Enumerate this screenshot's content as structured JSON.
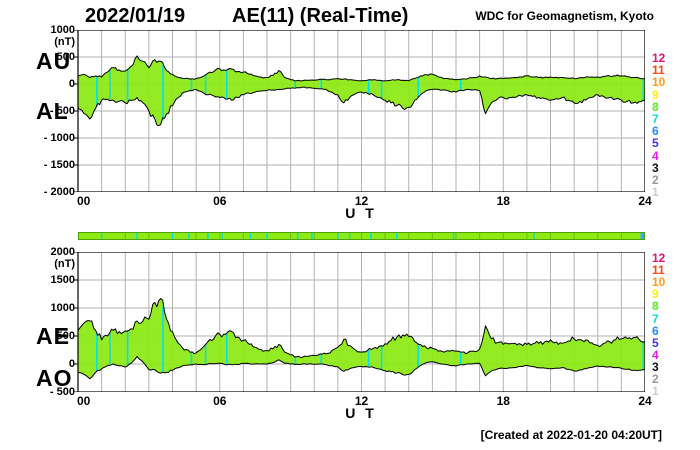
{
  "header": {
    "date": "2022/01/19",
    "title": "AE(11) (Real-Time)",
    "credit": "WDC for Geomagnetism, Kyoto"
  },
  "footer": {
    "created": "[Created at 2022-01-20 04:20UT]"
  },
  "axis": {
    "ut_label": "U T",
    "x_tick_labels": [
      "00",
      "06",
      "12",
      "18",
      "24"
    ],
    "unit": "(nT)"
  },
  "panel1": {
    "label_upper": "AU",
    "label_lower": "AL",
    "y_tick_labels": [
      "1000",
      "500",
      "0",
      "- 500",
      "- 1000",
      "- 1500",
      "- 2000"
    ]
  },
  "panel2": {
    "label_upper": "AE",
    "label_lower": "AO",
    "y_tick_labels": [
      "2000",
      "1500",
      "1000",
      "500",
      "0",
      "- 500"
    ]
  },
  "stations": [
    {
      "n": "12",
      "color": "#ee1177"
    },
    {
      "n": "11",
      "color": "#ff4411"
    },
    {
      "n": "10",
      "color": "#ff9911"
    },
    {
      "n": "9",
      "color": "#ffee11"
    },
    {
      "n": "8",
      "color": "#55ee22"
    },
    {
      "n": "7",
      "color": "#11ddcc"
    },
    {
      "n": "6",
      "color": "#2288ff"
    },
    {
      "n": "5",
      "color": "#4433ee"
    },
    {
      "n": "4",
      "color": "#dd22dd"
    },
    {
      "n": "3",
      "color": "#111111"
    },
    {
      "n": "2",
      "color": "#999999"
    },
    {
      "n": "1",
      "color": "#cccccc"
    }
  ],
  "colors": {
    "fill": "#8dea12",
    "grid": "#b2b2b2",
    "border": "#000000",
    "gap_mark": "#00dff0",
    "bar_separator": "#6fbf00",
    "bar_border": "#4f9f00",
    "bar_end_cap": "#2fb0ff"
  },
  "chart_data": {
    "type": "area",
    "title": "AE(11) (Real-Time) 2022/01/19",
    "xlabel": "U T",
    "ylabel": "(nT)",
    "x_start_hours": 0,
    "x_step_hours": 0.25,
    "xlim": [
      0,
      24
    ],
    "xticks": [
      0,
      6,
      12,
      18,
      24
    ],
    "grid": true,
    "panels": [
      {
        "name": "AU-AL",
        "upper": "AU",
        "lower": "AL",
        "ylim": [
          -2000,
          1000
        ],
        "yticks": [
          1000,
          500,
          0,
          -500,
          -1000,
          -1500,
          -2000
        ],
        "series": {
          "AU": [
            150,
            180,
            120,
            150,
            130,
            220,
            300,
            260,
            240,
            330,
            520,
            420,
            300,
            450,
            420,
            250,
            180,
            120,
            100,
            90,
            100,
            130,
            200,
            230,
            280,
            250,
            280,
            230,
            220,
            180,
            150,
            130,
            120,
            160,
            250,
            120,
            80,
            60,
            60,
            70,
            70,
            90,
            80,
            90,
            100,
            90,
            80,
            70,
            60,
            70,
            80,
            70,
            60,
            70,
            80,
            70,
            60,
            100,
            150,
            170,
            180,
            130,
            100,
            90,
            80,
            90,
            100,
            120,
            150,
            130,
            100,
            100,
            100,
            110,
            120,
            130,
            150,
            130,
            120,
            125,
            130,
            125,
            120,
            110,
            100,
            115,
            130,
            130,
            130,
            140,
            150,
            150,
            150,
            135,
            120,
            110,
            100
          ],
          "AL": [
            -450,
            -550,
            -650,
            -450,
            -300,
            -280,
            -300,
            -320,
            -350,
            -300,
            -250,
            -350,
            -500,
            -650,
            -750,
            -550,
            -400,
            -250,
            -150,
            -120,
            -100,
            -150,
            -200,
            -220,
            -250,
            -280,
            -300,
            -250,
            -200,
            -170,
            -150,
            -130,
            -120,
            -110,
            -100,
            -90,
            -80,
            -70,
            -60,
            -70,
            -80,
            -90,
            -100,
            -150,
            -200,
            -350,
            -250,
            -180,
            -150,
            -170,
            -200,
            -250,
            -300,
            -350,
            -400,
            -450,
            -430,
            -300,
            -200,
            -120,
            -100,
            -100,
            -110,
            -140,
            -150,
            -120,
            -100,
            -110,
            -120,
            -550,
            -350,
            -280,
            -250,
            -250,
            -250,
            -220,
            -200,
            -230,
            -250,
            -270,
            -300,
            -270,
            -250,
            -300,
            -350,
            -320,
            -300,
            -250,
            -200,
            -230,
            -250,
            -280,
            -300,
            -320,
            -350,
            -330,
            -300
          ]
        }
      },
      {
        "name": "AE-AO",
        "upper": "AE",
        "lower": "AO",
        "ylim": [
          -500,
          2000
        ],
        "yticks": [
          2000,
          1500,
          1000,
          500,
          0,
          -500
        ],
        "series": {
          "AE": [
            600,
            730,
            770,
            600,
            430,
            500,
            600,
            580,
            590,
            630,
            770,
            770,
            800,
            1100,
            1170,
            800,
            580,
            370,
            250,
            210,
            200,
            280,
            400,
            450,
            530,
            530,
            580,
            480,
            420,
            350,
            300,
            260,
            240,
            270,
            350,
            210,
            160,
            130,
            120,
            140,
            150,
            180,
            180,
            240,
            300,
            440,
            330,
            250,
            210,
            240,
            280,
            320,
            360,
            420,
            480,
            520,
            490,
            400,
            350,
            290,
            280,
            230,
            210,
            230,
            230,
            210,
            200,
            230,
            270,
            680,
            450,
            380,
            350,
            360,
            370,
            350,
            350,
            360,
            370,
            395,
            430,
            395,
            370,
            410,
            450,
            435,
            430,
            380,
            330,
            370,
            400,
            430,
            450,
            455,
            470,
            440,
            400
          ],
          "AO": [
            -150,
            -185,
            -265,
            -150,
            -85,
            -30,
            0,
            -30,
            -55,
            15,
            135,
            35,
            -100,
            -100,
            -165,
            -150,
            -110,
            -65,
            -25,
            -15,
            0,
            -10,
            0,
            5,
            15,
            -15,
            -10,
            -10,
            10,
            5,
            0,
            0,
            0,
            25,
            75,
            15,
            0,
            -5,
            0,
            0,
            -5,
            0,
            -10,
            -30,
            -50,
            -130,
            -85,
            -55,
            -45,
            -50,
            -60,
            -90,
            -120,
            -140,
            -160,
            -190,
            -185,
            -100,
            -25,
            25,
            40,
            15,
            -5,
            -25,
            -35,
            -15,
            0,
            5,
            15,
            -210,
            -125,
            -90,
            -75,
            -70,
            -65,
            -45,
            -25,
            -50,
            -65,
            -73,
            -85,
            -73,
            -65,
            -95,
            -125,
            -103,
            -85,
            -60,
            -35,
            -45,
            -50,
            -65,
            -75,
            -93,
            -115,
            -110,
            -100
          ]
        }
      }
    ],
    "gap_marks_hours": [
      0.8,
      1.35,
      2.1,
      3.6,
      4.8,
      5.4,
      6.3,
      9.2,
      10.3,
      12.3,
      12.85,
      14.4,
      16.2,
      23.93
    ],
    "availability_bar": {
      "full_range_hours": [
        0,
        24
      ],
      "segment_marks_hours": [
        1.0,
        2.5,
        4.0,
        4.7,
        5.5,
        6.1,
        7.3,
        8.0,
        9.3,
        9.9,
        11.0,
        11.5,
        12.4,
        13.5,
        15.9,
        19.3
      ]
    }
  }
}
